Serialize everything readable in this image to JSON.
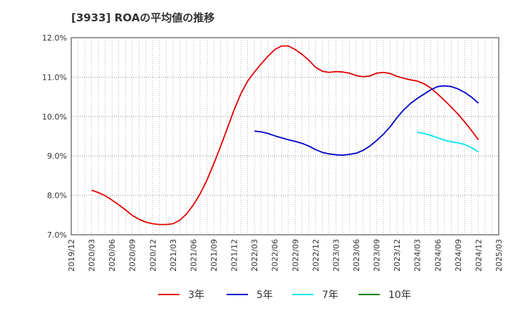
{
  "chart_data": {
    "type": "line",
    "title": "[3933]  ROAの平均値の推移",
    "xlabel": "",
    "ylabel": "",
    "ylim": [
      7.0,
      12.0
    ],
    "y_ticks": [
      "7.0%",
      "8.0%",
      "9.0%",
      "10.0%",
      "11.0%",
      "12.0%"
    ],
    "x_ticks": [
      "2019/12",
      "2020/03",
      "2020/06",
      "2020/09",
      "2020/12",
      "2021/03",
      "2021/06",
      "2021/09",
      "2021/12",
      "2022/03",
      "2022/06",
      "2022/09",
      "2022/12",
      "2023/03",
      "2023/06",
      "2023/09",
      "2023/12",
      "2024/03",
      "2024/06",
      "2024/09",
      "2024/12",
      "2025/03"
    ],
    "grid": true,
    "legend_position": "bottom",
    "series": [
      {
        "name": "3年",
        "color": "#e00000",
        "x": [
          "2020/03",
          "2020/04",
          "2020/05",
          "2020/06",
          "2020/07",
          "2020/08",
          "2020/09",
          "2020/10",
          "2020/11",
          "2020/12",
          "2021/01",
          "2021/02",
          "2021/03",
          "2021/04",
          "2021/05",
          "2021/06",
          "2021/07",
          "2021/08",
          "2021/09",
          "2021/10",
          "2021/11",
          "2021/12",
          "2022/01",
          "2022/02",
          "2022/03",
          "2022/04",
          "2022/05",
          "2022/06",
          "2022/07",
          "2022/08",
          "2022/09",
          "2022/10",
          "2022/11",
          "2022/12",
          "2023/01",
          "2023/02",
          "2023/03",
          "2023/04",
          "2023/05",
          "2023/06",
          "2023/07",
          "2023/08",
          "2023/09",
          "2023/10",
          "2023/11",
          "2023/12",
          "2024/01",
          "2024/02",
          "2024/03",
          "2024/04",
          "2024/05",
          "2024/06",
          "2024/07",
          "2024/08",
          "2024/09",
          "2024/10",
          "2024/11",
          "2024/12"
        ],
        "values": [
          8.13,
          8.07,
          7.99,
          7.88,
          7.76,
          7.63,
          7.49,
          7.39,
          7.32,
          7.28,
          7.26,
          7.26,
          7.28,
          7.37,
          7.53,
          7.76,
          8.04,
          8.39,
          8.8,
          9.24,
          9.7,
          10.17,
          10.58,
          10.9,
          11.13,
          11.34,
          11.53,
          11.7,
          11.79,
          11.79,
          11.7,
          11.58,
          11.43,
          11.25,
          11.15,
          11.12,
          11.14,
          11.13,
          11.1,
          11.04,
          11.01,
          11.03,
          11.1,
          11.12,
          11.09,
          11.02,
          10.97,
          10.93,
          10.9,
          10.83,
          10.72,
          10.57,
          10.41,
          10.24,
          10.06,
          9.86,
          9.64,
          9.41
        ]
      },
      {
        "name": "5年",
        "color": "#0000cc",
        "x": [
          "2022/03",
          "2022/04",
          "2022/05",
          "2022/06",
          "2022/07",
          "2022/08",
          "2022/09",
          "2022/10",
          "2022/11",
          "2022/12",
          "2023/01",
          "2023/02",
          "2023/03",
          "2023/04",
          "2023/05",
          "2023/06",
          "2023/07",
          "2023/08",
          "2023/09",
          "2023/10",
          "2023/11",
          "2023/12",
          "2024/01",
          "2024/02",
          "2024/03",
          "2024/04",
          "2024/05",
          "2024/06",
          "2024/07",
          "2024/08",
          "2024/09",
          "2024/10",
          "2024/11",
          "2024/12"
        ],
        "values": [
          9.63,
          9.61,
          9.57,
          9.51,
          9.46,
          9.41,
          9.37,
          9.32,
          9.25,
          9.16,
          9.09,
          9.05,
          9.03,
          9.02,
          9.04,
          9.07,
          9.14,
          9.25,
          9.39,
          9.55,
          9.74,
          9.97,
          10.17,
          10.33,
          10.46,
          10.57,
          10.68,
          10.76,
          10.78,
          10.76,
          10.7,
          10.61,
          10.49,
          10.34
        ]
      },
      {
        "name": "7年",
        "color": "#00e5ee",
        "x": [
          "2024/03",
          "2024/04",
          "2024/05",
          "2024/06",
          "2024/07",
          "2024/08",
          "2024/09",
          "2024/10",
          "2024/11",
          "2024/12"
        ],
        "values": [
          9.6,
          9.57,
          9.52,
          9.46,
          9.4,
          9.36,
          9.33,
          9.29,
          9.21,
          9.1
        ]
      },
      {
        "name": "10年",
        "color": "#008000",
        "x": [],
        "values": []
      }
    ]
  }
}
